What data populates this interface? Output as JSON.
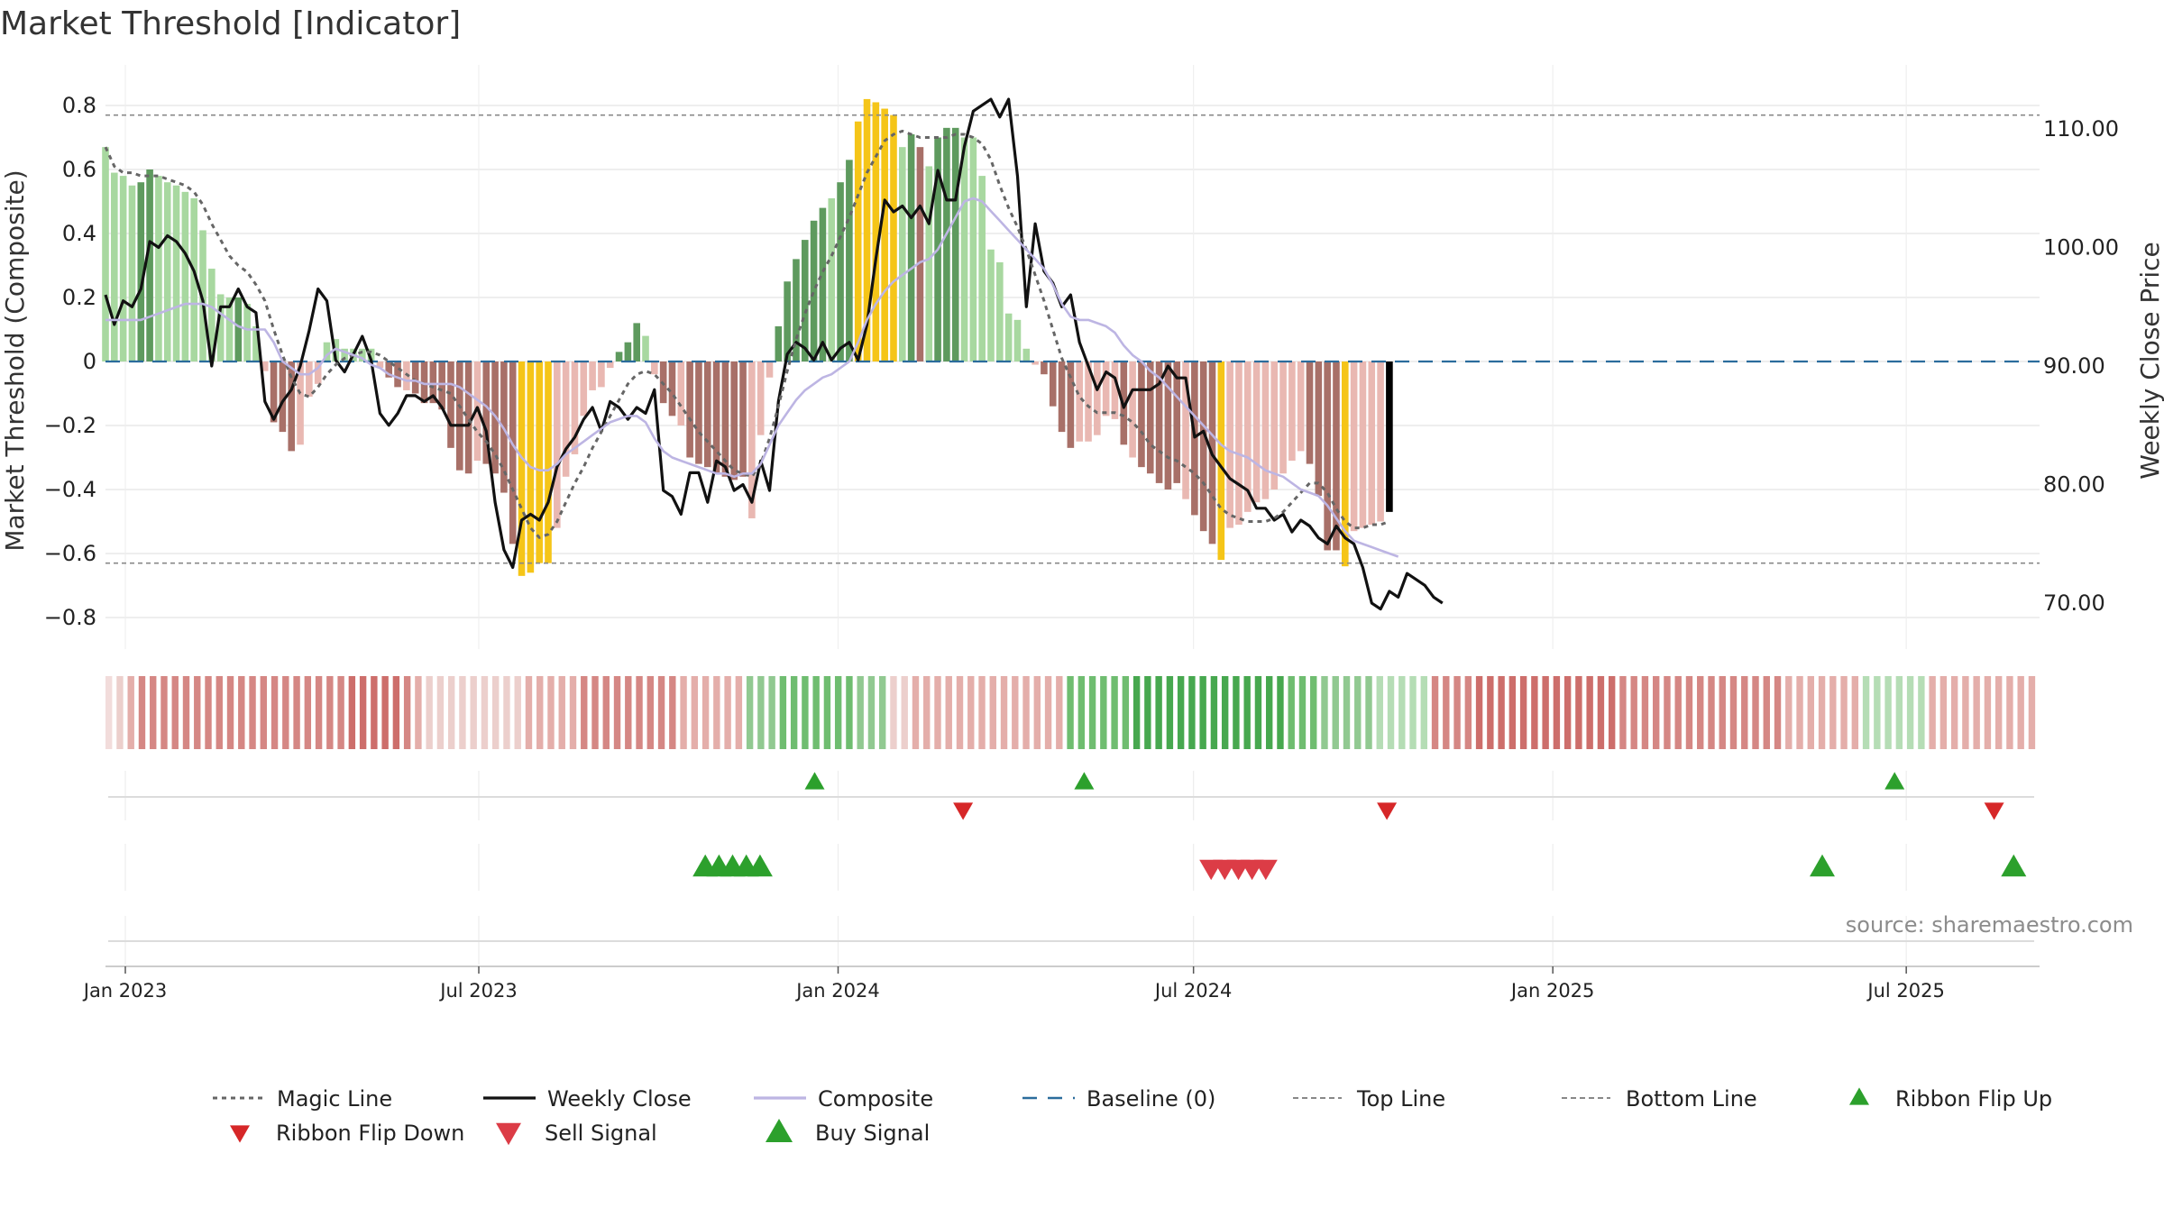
{
  "chart_data": {
    "type": "bar",
    "title": "Market Threshold [Indicator]",
    "ylabel_left": "Market Threshold (Composite)",
    "ylabel_right": "Weekly Close Price",
    "source_text": "source: sharemaestro.com",
    "left_ylim": [
      -0.9,
      0.82
    ],
    "right_ylim": [
      67.5,
      115.0
    ],
    "left_ticks": [
      0.8,
      0.6,
      0.4,
      0.2,
      0,
      -0.2,
      -0.4,
      -0.6,
      -0.8
    ],
    "left_tick_labels": [
      "0.8",
      "0.6",
      "0.4",
      "0.2",
      "0",
      "−0.2",
      "−0.4",
      "−0.6",
      "−0.8"
    ],
    "right_ticks": [
      110,
      100,
      90,
      80,
      70
    ],
    "right_tick_labels": [
      "110.00",
      "100.00",
      "90.00",
      "80.00",
      "70.00"
    ],
    "x_ticks": [
      {
        "label": "Jan 2023",
        "date": "2023-01-01"
      },
      {
        "label": "Jul 2023",
        "date": "2023-07-01"
      },
      {
        "label": "Jan 2024",
        "date": "2024-01-01"
      },
      {
        "label": "Jul 2024",
        "date": "2024-07-01"
      },
      {
        "label": "Jan 2025",
        "date": "2025-01-01"
      },
      {
        "label": "Jul 2025",
        "date": "2025-07-01"
      }
    ],
    "top_line": 0.77,
    "bottom_line": -0.63,
    "baseline": 0,
    "start_date": "2022-12-23",
    "composite_bars": [
      0.67,
      0.59,
      0.58,
      0.55,
      0.56,
      0.6,
      0.58,
      0.56,
      0.55,
      0.53,
      0.51,
      0.41,
      0.29,
      0.21,
      0.2,
      0.2,
      0.18,
      0.11,
      -0.03,
      -0.19,
      -0.22,
      -0.28,
      -0.26,
      -0.11,
      -0.07,
      0.06,
      0.07,
      0.04,
      0.04,
      0.04,
      0.04,
      -0.02,
      -0.05,
      -0.08,
      -0.09,
      -0.1,
      -0.13,
      -0.13,
      -0.15,
      -0.27,
      -0.34,
      -0.35,
      -0.31,
      -0.32,
      -0.35,
      -0.41,
      -0.57,
      -0.67,
      -0.66,
      -0.63,
      -0.63,
      -0.52,
      -0.36,
      -0.29,
      -0.17,
      -0.09,
      -0.08,
      -0.02,
      0.03,
      0.06,
      0.12,
      0.08,
      -0.04,
      -0.13,
      -0.17,
      -0.2,
      -0.3,
      -0.32,
      -0.33,
      -0.35,
      -0.36,
      -0.37,
      -0.36,
      -0.49,
      -0.23,
      -0.05,
      0.11,
      0.25,
      0.32,
      0.38,
      0.44,
      0.48,
      0.51,
      0.56,
      0.63,
      0.75,
      0.82,
      0.81,
      0.79,
      0.77,
      0.67,
      0.71,
      0.67,
      0.61,
      0.7,
      0.73,
      0.73,
      0.7,
      0.7,
      0.58,
      0.35,
      0.31,
      0.15,
      0.13,
      0.04,
      -0.01,
      -0.04,
      -0.14,
      -0.22,
      -0.27,
      -0.25,
      -0.25,
      -0.23,
      -0.17,
      -0.18,
      -0.26,
      -0.3,
      -0.33,
      -0.35,
      -0.38,
      -0.4,
      -0.38,
      -0.43,
      -0.48,
      -0.53,
      -0.57,
      -0.62,
      -0.52,
      -0.51,
      -0.47,
      -0.44,
      -0.43,
      -0.4,
      -0.35,
      -0.31,
      -0.28,
      -0.32,
      -0.42,
      -0.59,
      -0.59,
      -0.64,
      -0.53,
      -0.52,
      -0.51,
      -0.5,
      -0.47
    ],
    "bar_colors": [
      "#a8d8a0",
      "#a8d8a0",
      "#a8d8a0",
      "#a8d8a0",
      "#5e9a5e",
      "#5e9a5e",
      "#a8d8a0",
      "#a8d8a0",
      "#a8d8a0",
      "#a8d8a0",
      "#a8d8a0",
      "#a8d8a0",
      "#a8d8a0",
      "#a8d8a0",
      "#a8d8a0",
      "#5e9a5e",
      "#a8d8a0",
      "#a8d8a0",
      "#e9b8b2",
      "#a87068",
      "#a87068",
      "#a87068",
      "#e9b8b2",
      "#e9b8b2",
      "#e9b8b2",
      "#a8d8a0",
      "#a8d8a0",
      "#a8d8a0",
      "#a8d8a0",
      "#a8d8a0",
      "#a8d8a0",
      "#e9b8b2",
      "#a87068",
      "#a87068",
      "#e9b8b2",
      "#a87068",
      "#a87068",
      "#a87068",
      "#a87068",
      "#a87068",
      "#a87068",
      "#a87068",
      "#e9b8b2",
      "#a87068",
      "#a87068",
      "#a87068",
      "#a87068",
      "#f5c518",
      "#f5c518",
      "#f5c518",
      "#f5c518",
      "#e9b8b2",
      "#e9b8b2",
      "#e9b8b2",
      "#e9b8b2",
      "#e9b8b2",
      "#e9b8b2",
      "#e9b8b2",
      "#5e9a5e",
      "#5e9a5e",
      "#5e9a5e",
      "#a8d8a0",
      "#e9b8b2",
      "#a87068",
      "#a87068",
      "#e9b8b2",
      "#a87068",
      "#a87068",
      "#a87068",
      "#a87068",
      "#a87068",
      "#a87068",
      "#a87068",
      "#e9b8b2",
      "#e9b8b2",
      "#e9b8b2",
      "#5e9a5e",
      "#5e9a5e",
      "#5e9a5e",
      "#5e9a5e",
      "#5e9a5e",
      "#5e9a5e",
      "#a8d8a0",
      "#5e9a5e",
      "#5e9a5e",
      "#f5c518",
      "#f5c518",
      "#f5c518",
      "#f5c518",
      "#f5c518",
      "#a8d8a0",
      "#5e9a5e",
      "#a87068",
      "#a8d8a0",
      "#5e9a5e",
      "#5e9a5e",
      "#5e9a5e",
      "#a8d8a0",
      "#a8d8a0",
      "#a8d8a0",
      "#a8d8a0",
      "#a8d8a0",
      "#a8d8a0",
      "#a8d8a0",
      "#a8d8a0",
      "#e9b8b2",
      "#a87068",
      "#a87068",
      "#a87068",
      "#a87068",
      "#e9b8b2",
      "#e9b8b2",
      "#e9b8b2",
      "#e9b8b2",
      "#e9b8b2",
      "#a87068",
      "#e9b8b2",
      "#a87068",
      "#a87068",
      "#a87068",
      "#a87068",
      "#a87068",
      "#e9b8b2",
      "#a87068",
      "#a87068",
      "#a87068",
      "#f5c518",
      "#e9b8b2",
      "#e9b8b2",
      "#e9b8b2",
      "#e9b8b2",
      "#e9b8b2",
      "#e9b8b2",
      "#e9b8b2",
      "#e9b8b2",
      "#e9b8b2",
      "#a87068",
      "#a87068",
      "#a87068",
      "#a87068",
      "#f5c518",
      "#e9b8b2",
      "#e9b8b2",
      "#e9b8b2",
      "#e9b8b2"
    ],
    "series": [
      {
        "name": "Weekly Close",
        "color": "#111111",
        "axis": "right",
        "values": [
          96.0,
          93.5,
          95.5,
          95.0,
          96.5,
          100.5,
          100.0,
          101.0,
          100.5,
          99.5,
          98.0,
          95.5,
          90.0,
          95.0,
          95.0,
          96.5,
          95.0,
          94.5,
          87.0,
          85.5,
          87.0,
          88.0,
          90.0,
          93.0,
          96.5,
          95.5,
          90.5,
          89.5,
          91.0,
          92.5,
          90.5,
          86.0,
          85.0,
          86.0,
          87.5,
          87.5,
          87.0,
          87.5,
          86.5,
          85.0,
          85.0,
          85.0,
          86.5,
          84.5,
          78.5,
          74.5,
          73.0,
          77.0,
          77.5,
          77.0,
          78.5,
          81.5,
          83.0,
          84.0,
          85.5,
          86.5,
          84.5,
          87.0,
          86.5,
          85.5,
          86.5,
          86.0,
          88.0,
          79.5,
          79.0,
          77.5,
          81.0,
          81.0,
          78.5,
          82.0,
          81.5,
          79.5,
          80.0,
          78.5,
          82.0,
          79.5,
          87.0,
          91.0,
          92.0,
          91.5,
          90.5,
          92.0,
          90.5,
          91.5,
          92.0,
          90.5,
          93.5,
          99.0,
          104.0,
          103.0,
          103.5,
          102.5,
          103.5,
          102.0,
          106.5,
          104.0,
          104.0,
          108.5,
          111.5,
          112.0,
          112.5,
          111.0,
          112.5,
          106.0,
          95.0,
          102.0,
          98.0,
          97.0,
          95.0,
          96.0,
          92.0,
          90.0,
          88.0,
          89.5,
          89.0,
          86.5,
          88.0,
          88.0,
          88.0,
          88.5,
          90.0,
          89.0,
          89.0,
          84.0,
          84.5,
          82.5,
          81.5,
          80.5,
          80.0,
          79.5,
          78.0,
          78.0,
          77.0,
          77.5,
          76.0,
          77.0,
          76.5,
          75.5,
          75.0,
          76.5,
          75.5,
          75.0,
          73.0,
          70.0,
          69.5,
          71.0,
          70.5,
          72.5,
          72.0,
          71.5,
          70.5,
          70.0
        ]
      },
      {
        "name": "Magic Line",
        "color": "#666666",
        "axis": "left",
        "values": [
          0.67,
          0.61,
          0.59,
          0.59,
          0.58,
          0.58,
          0.58,
          0.57,
          0.56,
          0.55,
          0.53,
          0.49,
          0.43,
          0.38,
          0.33,
          0.3,
          0.28,
          0.24,
          0.19,
          0.1,
          0.02,
          -0.05,
          -0.1,
          -0.11,
          -0.08,
          -0.04,
          -0.01,
          0.01,
          0.02,
          0.03,
          0.03,
          0.02,
          0.0,
          -0.02,
          -0.04,
          -0.06,
          -0.07,
          -0.08,
          -0.09,
          -0.1,
          -0.14,
          -0.18,
          -0.22,
          -0.25,
          -0.29,
          -0.34,
          -0.4,
          -0.46,
          -0.52,
          -0.55,
          -0.54,
          -0.5,
          -0.44,
          -0.38,
          -0.33,
          -0.27,
          -0.22,
          -0.17,
          -0.12,
          -0.07,
          -0.04,
          -0.03,
          -0.04,
          -0.07,
          -0.1,
          -0.14,
          -0.18,
          -0.22,
          -0.25,
          -0.28,
          -0.31,
          -0.34,
          -0.35,
          -0.36,
          -0.32,
          -0.24,
          -0.14,
          -0.03,
          0.07,
          0.15,
          0.22,
          0.28,
          0.33,
          0.39,
          0.45,
          0.52,
          0.59,
          0.64,
          0.69,
          0.71,
          0.72,
          0.71,
          0.7,
          0.7,
          0.7,
          0.7,
          0.71,
          0.71,
          0.7,
          0.68,
          0.63,
          0.55,
          0.48,
          0.42,
          0.35,
          0.27,
          0.19,
          0.1,
          0.01,
          -0.05,
          -0.11,
          -0.14,
          -0.16,
          -0.16,
          -0.16,
          -0.17,
          -0.19,
          -0.22,
          -0.26,
          -0.28,
          -0.3,
          -0.31,
          -0.33,
          -0.35,
          -0.38,
          -0.42,
          -0.46,
          -0.48,
          -0.49,
          -0.5,
          -0.5,
          -0.5,
          -0.49,
          -0.47,
          -0.44,
          -0.41,
          -0.38,
          -0.38,
          -0.41,
          -0.46,
          -0.5,
          -0.52,
          -0.52,
          -0.51,
          -0.51,
          -0.5
        ]
      },
      {
        "name": "Composite",
        "color": "#bdb5e3",
        "axis": "left",
        "values": [
          0.13,
          0.13,
          0.13,
          0.13,
          0.13,
          0.14,
          0.15,
          0.16,
          0.17,
          0.18,
          0.18,
          0.18,
          0.17,
          0.15,
          0.13,
          0.11,
          0.1,
          0.1,
          0.1,
          0.06,
          0.0,
          -0.02,
          -0.04,
          -0.04,
          -0.02,
          0.02,
          0.04,
          0.03,
          0.02,
          0.01,
          -0.01,
          -0.02,
          -0.04,
          -0.05,
          -0.06,
          -0.06,
          -0.07,
          -0.07,
          -0.07,
          -0.07,
          -0.08,
          -0.1,
          -0.12,
          -0.14,
          -0.17,
          -0.21,
          -0.26,
          -0.3,
          -0.33,
          -0.34,
          -0.34,
          -0.32,
          -0.29,
          -0.27,
          -0.25,
          -0.23,
          -0.21,
          -0.19,
          -0.18,
          -0.17,
          -0.17,
          -0.19,
          -0.24,
          -0.28,
          -0.3,
          -0.31,
          -0.32,
          -0.33,
          -0.34,
          -0.35,
          -0.35,
          -0.36,
          -0.35,
          -0.35,
          -0.32,
          -0.26,
          -0.2,
          -0.16,
          -0.12,
          -0.09,
          -0.07,
          -0.05,
          -0.04,
          -0.02,
          0.0,
          0.06,
          0.13,
          0.18,
          0.22,
          0.25,
          0.27,
          0.29,
          0.31,
          0.32,
          0.35,
          0.4,
          0.45,
          0.5,
          0.51,
          0.5,
          0.47,
          0.44,
          0.41,
          0.38,
          0.35,
          0.32,
          0.29,
          0.24,
          0.18,
          0.14,
          0.13,
          0.13,
          0.12,
          0.11,
          0.09,
          0.05,
          0.02,
          0.0,
          -0.03,
          -0.05,
          -0.08,
          -0.11,
          -0.14,
          -0.17,
          -0.2,
          -0.23,
          -0.26,
          -0.28,
          -0.29,
          -0.3,
          -0.32,
          -0.34,
          -0.35,
          -0.36,
          -0.38,
          -0.4,
          -0.41,
          -0.42,
          -0.45,
          -0.49,
          -0.53,
          -0.56,
          -0.57,
          -0.58,
          -0.59,
          -0.6,
          -0.61
        ]
      }
    ],
    "ribbon_colors": [
      "#f2dcdb",
      "#eccfcc",
      "#e4aeaa",
      "#d58784",
      "#d58784",
      "#d58784",
      "#d58784",
      "#d58784",
      "#d58784",
      "#d58784",
      "#d58784",
      "#d58784",
      "#d58784",
      "#d58784",
      "#d58784",
      "#d58784",
      "#d58784",
      "#d58784",
      "#d58784",
      "#d58784",
      "#d58784",
      "#d58784",
      "#cd6e6b",
      "#cd6e6b",
      "#cd6e6b",
      "#cd6e6b",
      "#cd6e6b",
      "#d58784",
      "#e4aeaa",
      "#eccfcc",
      "#eccfcc",
      "#eccfcc",
      "#eccfcc",
      "#eccfcc",
      "#eccfcc",
      "#eccfcc",
      "#eccfcc",
      "#eccfcc",
      "#e4aeaa",
      "#e4aeaa",
      "#e4aeaa",
      "#e4aeaa",
      "#e4aeaa",
      "#d58784",
      "#d58784",
      "#d58784",
      "#d58784",
      "#d58784",
      "#d58784",
      "#d58784",
      "#d58784",
      "#d58784",
      "#e4aeaa",
      "#e4aeaa",
      "#e4aeaa",
      "#e4aeaa",
      "#e4aeaa",
      "#e4aeaa",
      "#91c991",
      "#91c991",
      "#91c991",
      "#6fbd70",
      "#6fbd70",
      "#6fbd70",
      "#6fbd70",
      "#6fbd70",
      "#6fbd70",
      "#6fbd70",
      "#91c991",
      "#91c991",
      "#91c991",
      "#eccfcc",
      "#eccfcc",
      "#e4aeaa",
      "#e4aeaa",
      "#e4aeaa",
      "#e4aeaa",
      "#e4aeaa",
      "#e4aeaa",
      "#e4aeaa",
      "#e4aeaa",
      "#e4aeaa",
      "#e4aeaa",
      "#e4aeaa",
      "#e4aeaa",
      "#e4aeaa",
      "#e4aeaa",
      "#6fbd70",
      "#6fbd70",
      "#6fbd70",
      "#6fbd70",
      "#6fbd70",
      "#6fbd70",
      "#47a84f",
      "#47a84f",
      "#47a84f",
      "#47a84f",
      "#47a84f",
      "#47a84f",
      "#47a84f",
      "#47a84f",
      "#47a84f",
      "#47a84f",
      "#47a84f",
      "#47a84f",
      "#47a84f",
      "#47a84f",
      "#6fbd70",
      "#6fbd70",
      "#6fbd70",
      "#91c991",
      "#91c991",
      "#91c991",
      "#91c991",
      "#91c991",
      "#b5ddb5",
      "#b5ddb5",
      "#b5ddb5",
      "#b5ddb5",
      "#b5ddb5",
      "#d58784",
      "#d58784",
      "#d58784",
      "#d58784",
      "#cd6e6b",
      "#cd6e6b",
      "#cd6e6b",
      "#cd6e6b",
      "#cd6e6b",
      "#cd6e6b",
      "#cd6e6b",
      "#cd6e6b",
      "#cd6e6b",
      "#cd6e6b",
      "#cd6e6b",
      "#cd6e6b",
      "#cd6e6b",
      "#d58784",
      "#d58784",
      "#d58784",
      "#d58784",
      "#d58784",
      "#d58784",
      "#d58784",
      "#d58784",
      "#d58784",
      "#d58784",
      "#d58784",
      "#d58784",
      "#d58784",
      "#d58784",
      "#d58784",
      "#e4aeaa",
      "#e4aeaa",
      "#e4aeaa",
      "#e4aeaa",
      "#e4aeaa",
      "#e4aeaa",
      "#e4aeaa",
      "#b5ddb5",
      "#b5ddb5",
      "#b5ddb5",
      "#b5ddb5",
      "#b5ddb5",
      "#b5ddb5",
      "#e4aeaa",
      "#e4aeaa",
      "#e4aeaa",
      "#e4aeaa",
      "#e4aeaa",
      "#e4aeaa",
      "#e4aeaa",
      "#e4aeaa",
      "#e4aeaa",
      "#e4aeaa"
    ],
    "ribbon_flip_up_dates": [
      "2023-12-20",
      "2024-05-06",
      "2025-06-25"
    ],
    "ribbon_flip_down_dates": [
      "2024-03-05",
      "2024-10-08",
      "2025-08-15"
    ],
    "buy_signal_dates": [
      "2023-10-25",
      "2023-11-01",
      "2023-11-08",
      "2023-11-15",
      "2023-11-22",
      "2025-05-19",
      "2025-08-25"
    ],
    "sell_signal_dates": [
      "2024-07-10",
      "2024-07-17",
      "2024-07-24",
      "2024-07-31",
      "2024-08-07"
    ],
    "legend": [
      {
        "label": "Magic Line",
        "kind": "dotted",
        "color": "#666666"
      },
      {
        "label": "Weekly Close",
        "kind": "solid",
        "color": "#111111"
      },
      {
        "label": "Composite",
        "kind": "solid",
        "color": "#bdb5e3"
      },
      {
        "label": "Baseline (0)",
        "kind": "dashed",
        "color": "#2b6c9c"
      },
      {
        "label": "Top Line",
        "kind": "dashed-thin",
        "color": "#888888"
      },
      {
        "label": "Bottom Line",
        "kind": "dashed-thin",
        "color": "#888888"
      },
      {
        "label": "Ribbon Flip Up",
        "kind": "tri-up",
        "color": "#2ca02c"
      },
      {
        "label": "Ribbon Flip Down",
        "kind": "tri-down",
        "color": "#d62728"
      },
      {
        "label": "Sell Signal",
        "kind": "tri-down-big",
        "color": "#dc3c46"
      },
      {
        "label": "Buy Signal",
        "kind": "tri-up-big",
        "color": "#2ca02c"
      }
    ]
  }
}
